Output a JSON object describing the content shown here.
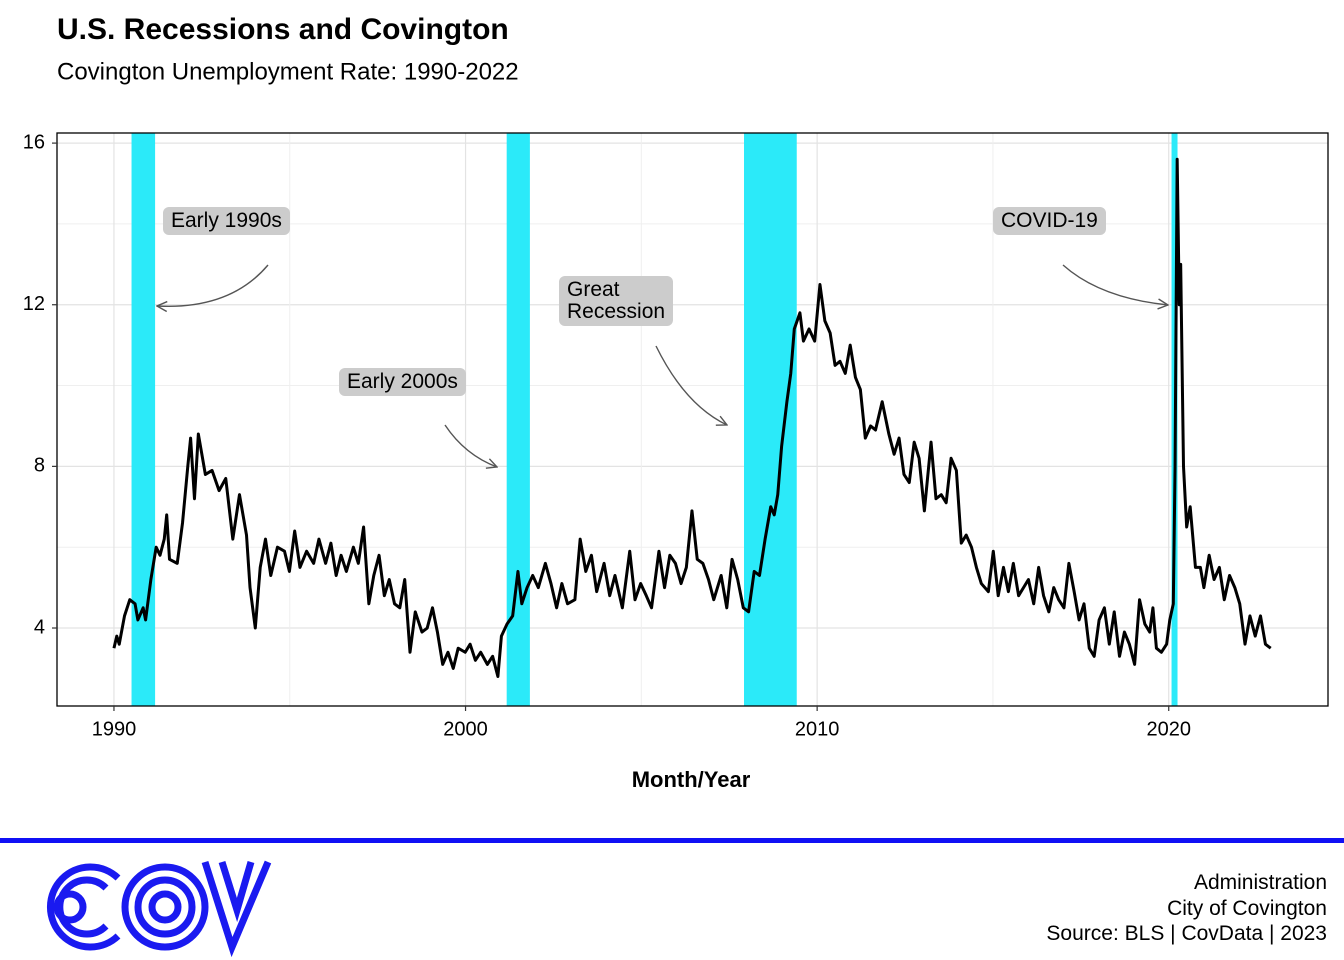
{
  "chart_data": {
    "type": "line",
    "title": "U.S. Recessions and Covington",
    "subtitle": "Covington Unemployment Rate: 1990-2022",
    "x_label": "Month/Year",
    "color": "#000000",
    "grid": true,
    "recession_color": "#2beaf9",
    "recessions": [
      {
        "start": 1990.5,
        "end": 1991.17
      },
      {
        "start": 2001.17,
        "end": 2001.83
      },
      {
        "start": 2007.92,
        "end": 2009.42
      },
      {
        "start": 2020.08,
        "end": 2020.25
      }
    ],
    "annotations": [
      {
        "text": "Early 1990s"
      },
      {
        "text": "Early 2000s"
      },
      {
        "text": "Great\nRecession"
      },
      {
        "text": "COVID-19"
      }
    ],
    "xlim": [
      1988.38,
      2024.53
    ],
    "xticks": [
      1990,
      2000,
      2010,
      2020
    ],
    "ylim": [
      2.07,
      16.25
    ],
    "yticks": [
      4,
      8,
      12,
      16
    ],
    "x": [
      1990.0,
      1990.08,
      1990.15,
      1990.3,
      1990.45,
      1990.6,
      1990.68,
      1990.83,
      1990.9,
      1991.05,
      1991.2,
      1991.31,
      1991.43,
      1991.5,
      1991.58,
      1991.8,
      1991.95,
      1992.1,
      1992.18,
      1992.29,
      1992.4,
      1992.6,
      1992.79,
      1992.99,
      1993.18,
      1993.38,
      1993.57,
      1993.77,
      1993.87,
      1994.02,
      1994.16,
      1994.31,
      1994.46,
      1994.65,
      1994.85,
      1994.99,
      1995.14,
      1995.29,
      1995.48,
      1995.68,
      1995.83,
      1996.02,
      1996.17,
      1996.32,
      1996.46,
      1996.61,
      1996.81,
      1996.95,
      1997.1,
      1997.25,
      1997.39,
      1997.54,
      1997.69,
      1997.83,
      1997.98,
      1998.13,
      1998.27,
      1998.42,
      1998.57,
      1998.76,
      1998.91,
      1999.06,
      1999.2,
      1999.35,
      1999.5,
      1999.65,
      1999.79,
      1999.99,
      2000.13,
      2000.28,
      2000.43,
      2000.62,
      2000.77,
      2000.92,
      2001.02,
      2001.18,
      2001.34,
      2001.49,
      2001.6,
      2001.75,
      2001.91,
      2002.07,
      2002.27,
      2002.43,
      2002.59,
      2002.74,
      2002.9,
      2003.11,
      2003.26,
      2003.42,
      2003.58,
      2003.73,
      2003.94,
      2004.1,
      2004.25,
      2004.46,
      2004.67,
      2004.82,
      2004.98,
      2005.14,
      2005.29,
      2005.5,
      2005.66,
      2005.81,
      2005.97,
      2006.13,
      2006.28,
      2006.44,
      2006.59,
      2006.75,
      2006.91,
      2007.06,
      2007.27,
      2007.43,
      2007.58,
      2007.74,
      2007.9,
      2008.05,
      2008.21,
      2008.36,
      2008.52,
      2008.68,
      2008.78,
      2008.88,
      2008.99,
      2009.14,
      2009.25,
      2009.35,
      2009.51,
      2009.61,
      2009.77,
      2009.93,
      2010.08,
      2010.22,
      2010.37,
      2010.51,
      2010.65,
      2010.8,
      2010.94,
      2011.09,
      2011.23,
      2011.37,
      2011.52,
      2011.66,
      2011.85,
      2012.04,
      2012.19,
      2012.33,
      2012.47,
      2012.62,
      2012.76,
      2012.9,
      2013.05,
      2013.24,
      2013.38,
      2013.53,
      2013.67,
      2013.81,
      2013.96,
      2014.1,
      2014.24,
      2014.39,
      2014.53,
      2014.67,
      2014.87,
      2015.01,
      2015.15,
      2015.3,
      2015.44,
      2015.58,
      2015.73,
      2015.87,
      2016.01,
      2016.16,
      2016.3,
      2016.44,
      2016.59,
      2016.73,
      2016.87,
      2017.02,
      2017.16,
      2017.31,
      2017.45,
      2017.59,
      2017.74,
      2017.88,
      2018.02,
      2018.17,
      2018.31,
      2018.45,
      2018.6,
      2018.74,
      2018.88,
      2019.03,
      2019.17,
      2019.32,
      2019.46,
      2019.55,
      2019.65,
      2019.79,
      2019.94,
      2020.03,
      2020.13,
      2020.18,
      2020.24,
      2020.3,
      2020.34,
      2020.42,
      2020.51,
      2020.61,
      2020.76,
      2020.9,
      2021.0,
      2021.15,
      2021.29,
      2021.44,
      2021.58,
      2021.73,
      2021.88,
      2022.02,
      2022.17,
      2022.31,
      2022.46,
      2022.61,
      2022.75,
      2022.9
    ],
    "values": [
      3.5,
      3.8,
      3.6,
      4.3,
      4.7,
      4.6,
      4.2,
      4.5,
      4.2,
      5.2,
      6.0,
      5.8,
      6.2,
      6.8,
      5.7,
      5.6,
      6.6,
      8.0,
      8.7,
      7.2,
      8.8,
      7.8,
      7.9,
      7.4,
      7.7,
      6.2,
      7.3,
      6.3,
      5.0,
      4.0,
      5.5,
      6.2,
      5.3,
      6.0,
      5.9,
      5.4,
      6.4,
      5.5,
      5.9,
      5.6,
      6.2,
      5.6,
      6.1,
      5.3,
      5.8,
      5.4,
      6.0,
      5.6,
      6.5,
      4.6,
      5.3,
      5.8,
      4.8,
      5.2,
      4.6,
      4.5,
      5.2,
      3.4,
      4.4,
      3.9,
      4.0,
      4.5,
      3.9,
      3.1,
      3.4,
      3.0,
      3.5,
      3.4,
      3.6,
      3.2,
      3.4,
      3.1,
      3.3,
      2.8,
      3.8,
      4.1,
      4.3,
      5.4,
      4.6,
      5.0,
      5.3,
      5.0,
      5.6,
      5.1,
      4.5,
      5.1,
      4.6,
      4.7,
      6.2,
      5.4,
      5.8,
      4.9,
      5.6,
      4.8,
      5.3,
      4.5,
      5.9,
      4.7,
      5.1,
      4.8,
      4.5,
      5.9,
      5.0,
      5.8,
      5.6,
      5.1,
      5.5,
      6.9,
      5.7,
      5.6,
      5.2,
      4.7,
      5.3,
      4.5,
      5.7,
      5.2,
      4.5,
      4.4,
      5.4,
      5.3,
      6.2,
      7.0,
      6.8,
      7.3,
      8.5,
      9.6,
      10.3,
      11.4,
      11.8,
      11.1,
      11.4,
      11.1,
      12.5,
      11.6,
      11.3,
      10.5,
      10.6,
      10.3,
      11.0,
      10.2,
      9.9,
      8.7,
      9.0,
      8.9,
      9.6,
      8.8,
      8.3,
      8.7,
      7.8,
      7.6,
      8.6,
      8.2,
      6.9,
      8.6,
      7.2,
      7.3,
      7.1,
      8.2,
      7.9,
      6.1,
      6.3,
      6.0,
      5.5,
      5.1,
      4.9,
      5.9,
      4.8,
      5.5,
      4.9,
      5.6,
      4.8,
      5.0,
      5.2,
      4.6,
      5.5,
      4.8,
      4.4,
      5.0,
      4.7,
      4.5,
      5.6,
      4.9,
      4.2,
      4.6,
      3.5,
      3.3,
      4.2,
      4.5,
      3.6,
      4.4,
      3.3,
      3.9,
      3.6,
      3.1,
      4.7,
      4.1,
      3.9,
      4.5,
      3.5,
      3.4,
      3.6,
      4.2,
      4.6,
      8.0,
      15.6,
      12.0,
      13.0,
      8.0,
      6.5,
      7.0,
      5.5,
      5.5,
      5.0,
      5.8,
      5.2,
      5.5,
      4.7,
      5.3,
      5.0,
      4.6,
      3.6,
      4.3,
      3.8,
      4.3,
      3.6,
      3.5
    ]
  },
  "footer": {
    "lines": [
      "Administration",
      "City of Covington",
      "Source: BLS | CovData | 2023"
    ]
  }
}
